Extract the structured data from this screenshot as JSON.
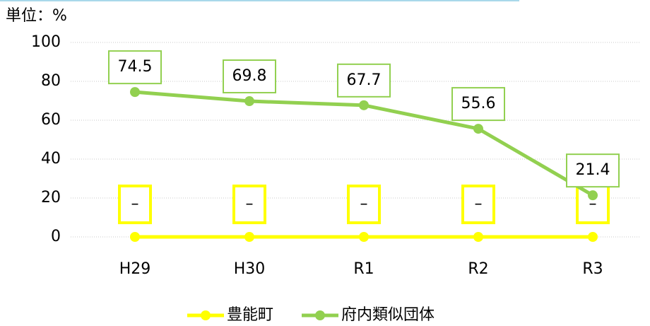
{
  "chart_data": {
    "type": "line",
    "unit_label": "単位：%",
    "categories": [
      "H29",
      "H30",
      "R1",
      "R2",
      "R3"
    ],
    "series": [
      {
        "name": "豊能町",
        "color": "#ffff00",
        "label_border": "#ffff00",
        "values": [
          0,
          0,
          0,
          0,
          0
        ],
        "value_labels": [
          "–",
          "–",
          "–",
          "–",
          "–"
        ]
      },
      {
        "name": "府内類似団体",
        "color": "#92d050",
        "label_border": "#92d050",
        "values": [
          74.5,
          69.8,
          67.7,
          55.6,
          21.4
        ]
      }
    ],
    "ylim": [
      0,
      100
    ],
    "yticks": [
      0,
      20,
      40,
      60,
      80,
      100
    ],
    "grid": true
  }
}
